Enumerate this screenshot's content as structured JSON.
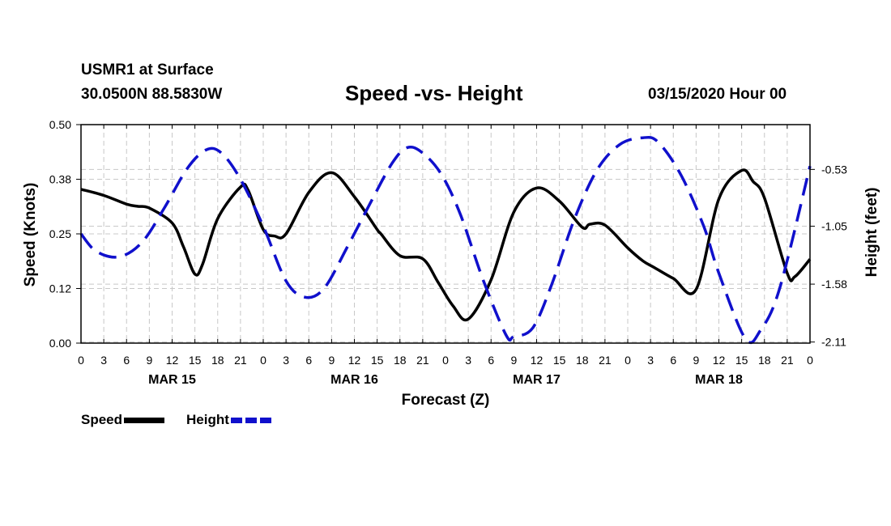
{
  "header": {
    "station": "USMR1 at Surface",
    "coords": "30.0500N 88.5830W",
    "title": "Speed -vs- Height",
    "timestamp": "03/15/2020 Hour 00"
  },
  "legend": {
    "speed_label": "Speed",
    "height_label": "Height"
  },
  "colors": {
    "speed": "#000000",
    "height": "#1010cc",
    "grid": "#c8c8c8"
  },
  "chart_data": {
    "type": "line",
    "title": "Speed -vs- Height",
    "xlabel": "Forecast (Z)",
    "ylabel": "Speed (Knots)",
    "y2label": "Height (feet)",
    "grid": true,
    "x_range_hours": [
      0,
      96
    ],
    "x_tick_labels": [
      "0",
      "3",
      "6",
      "9",
      "12",
      "15",
      "18",
      "21",
      "0",
      "3",
      "6",
      "9",
      "12",
      "15",
      "18",
      "21",
      "0",
      "3",
      "6",
      "9",
      "12",
      "15",
      "18",
      "21",
      "0",
      "3",
      "6",
      "9",
      "12",
      "15",
      "18",
      "21",
      "0"
    ],
    "day_labels": [
      {
        "label": "MAR 15",
        "hour": 12
      },
      {
        "label": "MAR 16",
        "hour": 36
      },
      {
        "label": "MAR 17",
        "hour": 60
      },
      {
        "label": "MAR 18",
        "hour": 84
      }
    ],
    "ylim": [
      0,
      0.5
    ],
    "y_tick_labels": [
      "0.50",
      "0.38",
      "0.25",
      "0.12",
      "0.00"
    ],
    "y_tick_values": [
      0.5,
      0.375,
      0.25,
      0.125,
      0.0
    ],
    "y2lim": [
      -2.12,
      -0.12
    ],
    "y2_tick_labels": [
      "-0.53",
      "-1.05",
      "-1.58",
      "-2.11"
    ],
    "y2_tick_values": [
      -0.53,
      -1.05,
      -1.58,
      -2.11
    ],
    "series": [
      {
        "name": "Speed",
        "axis": "left",
        "x": [
          0,
          3,
          6,
          7.5,
          9,
          12,
          13.5,
          15,
          16,
          18,
          21,
          22,
          24,
          25.5,
          27,
          30,
          33,
          36,
          39,
          39.5,
          42,
          45,
          47,
          49,
          51,
          54,
          57,
          60,
          63,
          66,
          67,
          69,
          72,
          74,
          75.5,
          78,
          81,
          84,
          87,
          88.5,
          90,
          93,
          94,
          96
        ],
        "values": [
          0.352,
          0.338,
          0.318,
          0.313,
          0.309,
          0.275,
          0.22,
          0.158,
          0.18,
          0.285,
          0.357,
          0.35,
          0.26,
          0.245,
          0.25,
          0.345,
          0.39,
          0.335,
          0.26,
          0.25,
          0.2,
          0.193,
          0.14,
          0.085,
          0.055,
          0.145,
          0.3,
          0.355,
          0.325,
          0.265,
          0.272,
          0.27,
          0.218,
          0.188,
          0.173,
          0.148,
          0.123,
          0.33,
          0.395,
          0.37,
          0.332,
          0.16,
          0.152,
          0.192
        ]
      },
      {
        "name": "Height",
        "axis": "right",
        "x": [
          0,
          2,
          5,
          8,
          11,
          14,
          16.5,
          18.5,
          21,
          24,
          27,
          29.5,
          32,
          35,
          38,
          41,
          43,
          45,
          47.5,
          50,
          53,
          56,
          57,
          59.5,
          62,
          65,
          68,
          71,
          74,
          76,
          79,
          82,
          84,
          87.5,
          89.5,
          92,
          96
        ],
        "values": [
          -1.12,
          -1.28,
          -1.33,
          -1.2,
          -0.88,
          -0.52,
          -0.35,
          -0.38,
          -0.62,
          -1.05,
          -1.55,
          -1.7,
          -1.62,
          -1.25,
          -0.85,
          -0.47,
          -0.33,
          -0.38,
          -0.58,
          -0.95,
          -1.55,
          -2.05,
          -2.06,
          -1.98,
          -1.58,
          -0.98,
          -0.53,
          -0.3,
          -0.24,
          -0.28,
          -0.58,
          -1.05,
          -1.48,
          -2.08,
          -2.0,
          -1.62,
          -0.5
        ]
      }
    ]
  }
}
